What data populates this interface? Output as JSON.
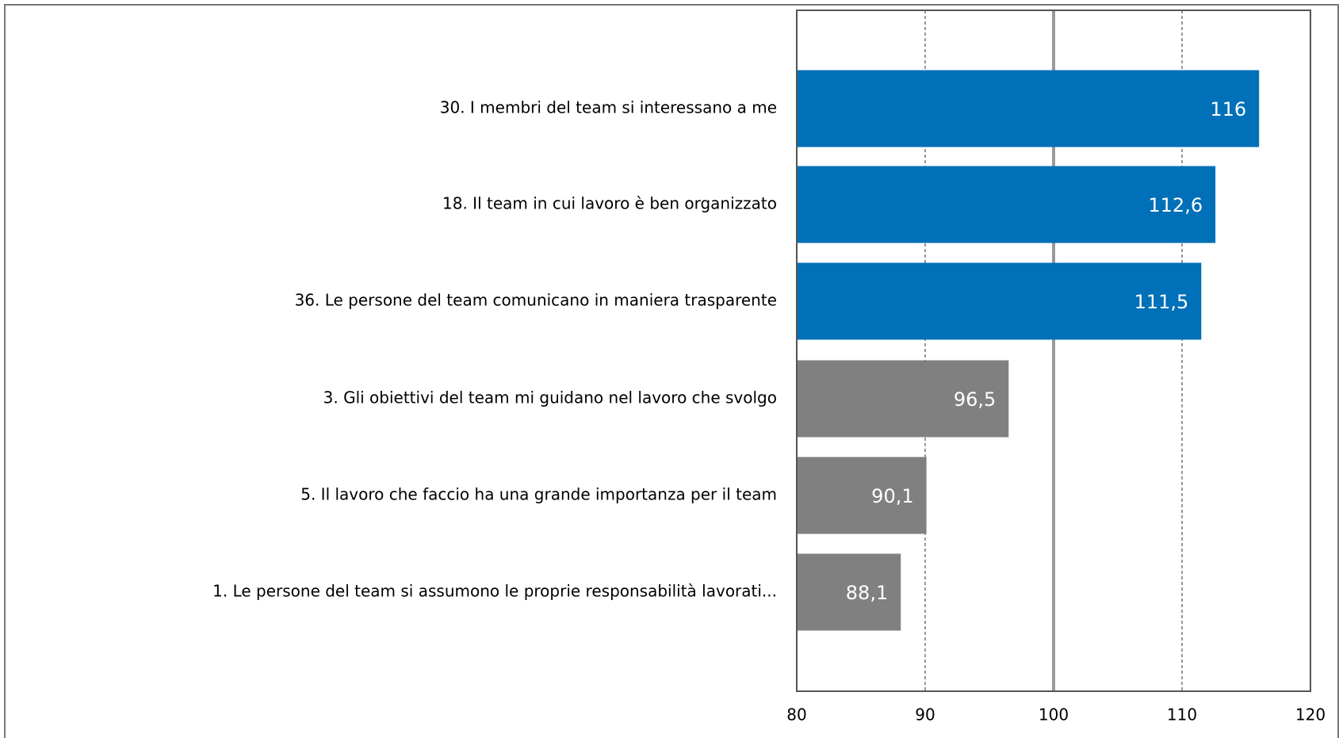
{
  "chart_data": {
    "type": "barh",
    "categories": [
      "30. I membri del team si interessano a me",
      "18. Il team in cui lavoro è ben organizzato",
      "36. Le persone del team comunicano in maniera trasparente",
      "3. Gli obiettivi del team mi guidano nel lavoro che svolgo",
      "5. Il lavoro che faccio ha una grande importanza per il team",
      "1. Le persone del team si assumono le proprie responsabilità lavorati..."
    ],
    "values": [
      116,
      112.6,
      111.5,
      96.5,
      90.1,
      88.1
    ],
    "value_labels": [
      "116",
      "112,6",
      "111,5",
      "96,5",
      "90,1",
      "88,1"
    ],
    "colors": [
      "#0070b8",
      "#0070b8",
      "#0070b8",
      "#808080",
      "#808080",
      "#808080"
    ],
    "xlim": [
      80,
      120
    ],
    "xticks": [
      80,
      90,
      100,
      110,
      120
    ],
    "grid": true,
    "reference_line": 100
  }
}
